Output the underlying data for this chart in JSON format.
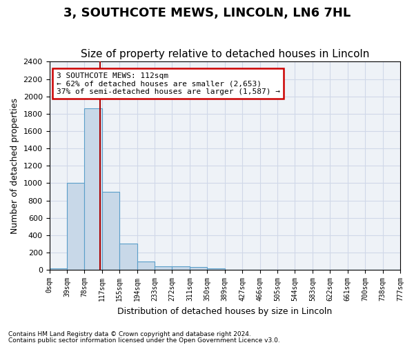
{
  "title": "3, SOUTHCOTE MEWS, LINCOLN, LN6 7HL",
  "subtitle": "Size of property relative to detached houses in Lincoln",
  "xlabel": "Distribution of detached houses by size in Lincoln",
  "ylabel": "Number of detached properties",
  "footnote1": "Contains HM Land Registry data © Crown copyright and database right 2024.",
  "footnote2": "Contains public sector information licensed under the Open Government Licence v3.0.",
  "bin_labels": [
    "0sqm",
    "39sqm",
    "78sqm",
    "117sqm",
    "155sqm",
    "194sqm",
    "233sqm",
    "272sqm",
    "311sqm",
    "350sqm",
    "389sqm",
    "427sqm",
    "466sqm",
    "505sqm",
    "544sqm",
    "583sqm",
    "622sqm",
    "661sqm",
    "700sqm",
    "738sqm",
    "777sqm"
  ],
  "bar_values": [
    20,
    1000,
    1860,
    900,
    300,
    100,
    45,
    45,
    30,
    20,
    0,
    0,
    0,
    0,
    0,
    0,
    0,
    0,
    0,
    0
  ],
  "bar_color": "#c8d8e8",
  "bar_edge_color": "#5a9ec9",
  "vline_x": 2.9,
  "vline_color": "#aa0000",
  "ylim": [
    0,
    2400
  ],
  "yticks": [
    0,
    200,
    400,
    600,
    800,
    1000,
    1200,
    1400,
    1600,
    1800,
    2000,
    2200,
    2400
  ],
  "annotation_text": "3 SOUTHCOTE MEWS: 112sqm\n← 62% of detached houses are smaller (2,653)\n37% of semi-detached houses are larger (1,587) →",
  "annotation_box_facecolor": "#ffffff",
  "annotation_box_edgecolor": "#cc0000",
  "grid_color": "#d0d8e8",
  "bg_color": "#eef2f7",
  "title_fontsize": 13,
  "subtitle_fontsize": 11
}
